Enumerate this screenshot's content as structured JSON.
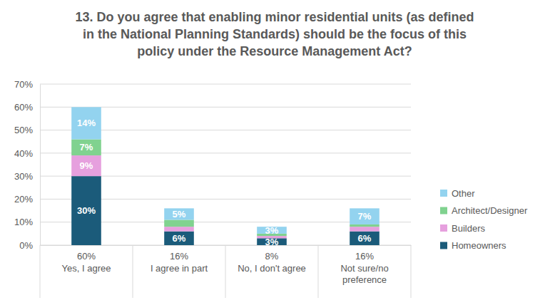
{
  "chart_data": {
    "type": "bar",
    "title": "13. Do you agree that enabling minor residential units (as defined in the National Planning Standards) should be the focus of this policy under the Resource Management Act?",
    "categories": [
      "Yes, I agree",
      "I agree in part",
      "No, I don't agree",
      "Not sure/no preference"
    ],
    "total_labels": [
      "60%",
      "16%",
      "8%",
      "16%"
    ],
    "series": [
      {
        "name": "Homeowners",
        "color": "#1b5b7a",
        "values": [
          30,
          6,
          3,
          6
        ],
        "value_labels": [
          "30%",
          "6%",
          "3%",
          "6%"
        ]
      },
      {
        "name": "Builders",
        "color": "#e6a0de",
        "values": [
          9,
          2,
          1,
          2
        ],
        "value_labels": [
          "9%",
          null,
          null,
          null
        ]
      },
      {
        "name": "Architect/Designer",
        "color": "#80d28f",
        "values": [
          7,
          3,
          1,
          1
        ],
        "value_labels": [
          "7%",
          null,
          null,
          null
        ]
      },
      {
        "name": "Other",
        "color": "#93d3ef",
        "values": [
          14,
          5,
          3,
          7
        ],
        "value_labels": [
          "14%",
          "5%",
          "3%",
          "7%"
        ]
      }
    ],
    "stacked": true,
    "data_labels": true,
    "ylim": [
      0,
      70
    ],
    "yticks": [
      {
        "value": 0,
        "label": "0%"
      },
      {
        "value": 10,
        "label": "10%"
      },
      {
        "value": 20,
        "label": "20%"
      },
      {
        "value": 30,
        "label": "30%"
      },
      {
        "value": 40,
        "label": "40%"
      },
      {
        "value": 50,
        "label": "50%"
      },
      {
        "value": 60,
        "label": "60%"
      },
      {
        "value": 70,
        "label": "70%"
      }
    ],
    "grid": true,
    "legend": "right"
  }
}
